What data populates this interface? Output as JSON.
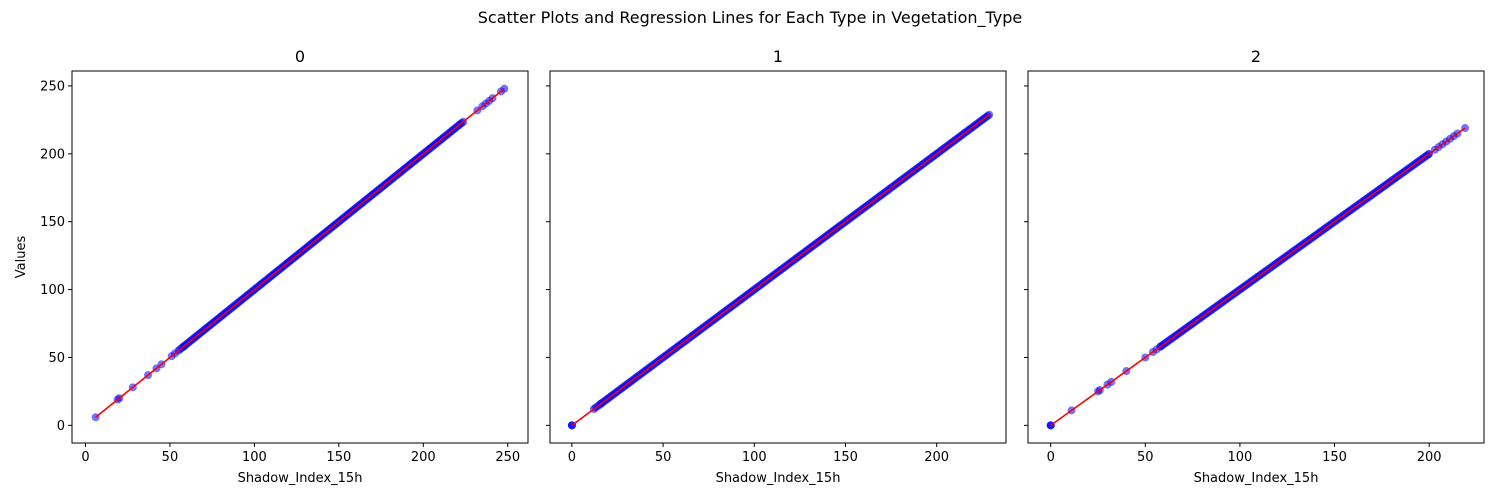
{
  "figure": {
    "title": "Scatter Plots and Regression Lines for Each Type in Vegetation_Type"
  },
  "chart_data": [
    {
      "type": "scatter",
      "title": "0",
      "xlabel": "Shadow_Index_15h",
      "ylabel": "Values",
      "xlim": [
        -8,
        262
      ],
      "ylim": [
        -13,
        261
      ],
      "xticks": [
        0,
        50,
        100,
        150,
        200,
        250
      ],
      "yticks": [
        0,
        50,
        100,
        150,
        200,
        250
      ],
      "show_ytick_labels": true,
      "point_color": "#0000ff",
      "line_color": "#ff0000",
      "sparse_points": [
        6,
        19,
        20,
        28,
        37,
        42,
        45,
        51,
        53,
        55,
        56,
        57,
        58,
        232,
        235,
        237,
        239,
        241,
        246,
        248
      ],
      "dense_range": [
        58,
        224
      ],
      "regression": {
        "x": [
          6,
          248
        ],
        "y": [
          6,
          248
        ]
      }
    },
    {
      "type": "scatter",
      "title": "1",
      "xlabel": "Shadow_Index_15h",
      "ylabel": "",
      "xlim": [
        -12,
        238
      ],
      "ylim": [
        -13,
        261
      ],
      "xticks": [
        0,
        50,
        100,
        150,
        200
      ],
      "yticks": [
        0,
        50,
        100,
        150,
        200,
        250
      ],
      "show_ytick_labels": false,
      "point_color": "#0000ff",
      "line_color": "#ff0000",
      "sparse_points": [
        0,
        0,
        0,
        12,
        13,
        14,
        15,
        16
      ],
      "dense_range": [
        16,
        229
      ],
      "regression": {
        "x": [
          0,
          229
        ],
        "y": [
          0,
          229
        ]
      }
    },
    {
      "type": "scatter",
      "title": "2",
      "xlabel": "Shadow_Index_15h",
      "ylabel": "",
      "xlim": [
        -12,
        229
      ],
      "ylim": [
        -13,
        261
      ],
      "xticks": [
        0,
        50,
        100,
        150,
        200
      ],
      "yticks": [
        0,
        50,
        100,
        150,
        200,
        250
      ],
      "show_ytick_labels": false,
      "point_color": "#0000ff",
      "line_color": "#ff0000",
      "sparse_points": [
        0,
        0,
        0,
        11,
        25,
        26,
        30,
        32,
        40,
        50,
        54,
        56,
        58,
        200,
        203,
        205,
        207,
        209,
        211,
        213,
        215,
        219
      ],
      "dense_range": [
        58,
        200
      ],
      "regression": {
        "x": [
          0,
          219
        ],
        "y": [
          0,
          219
        ]
      }
    }
  ]
}
